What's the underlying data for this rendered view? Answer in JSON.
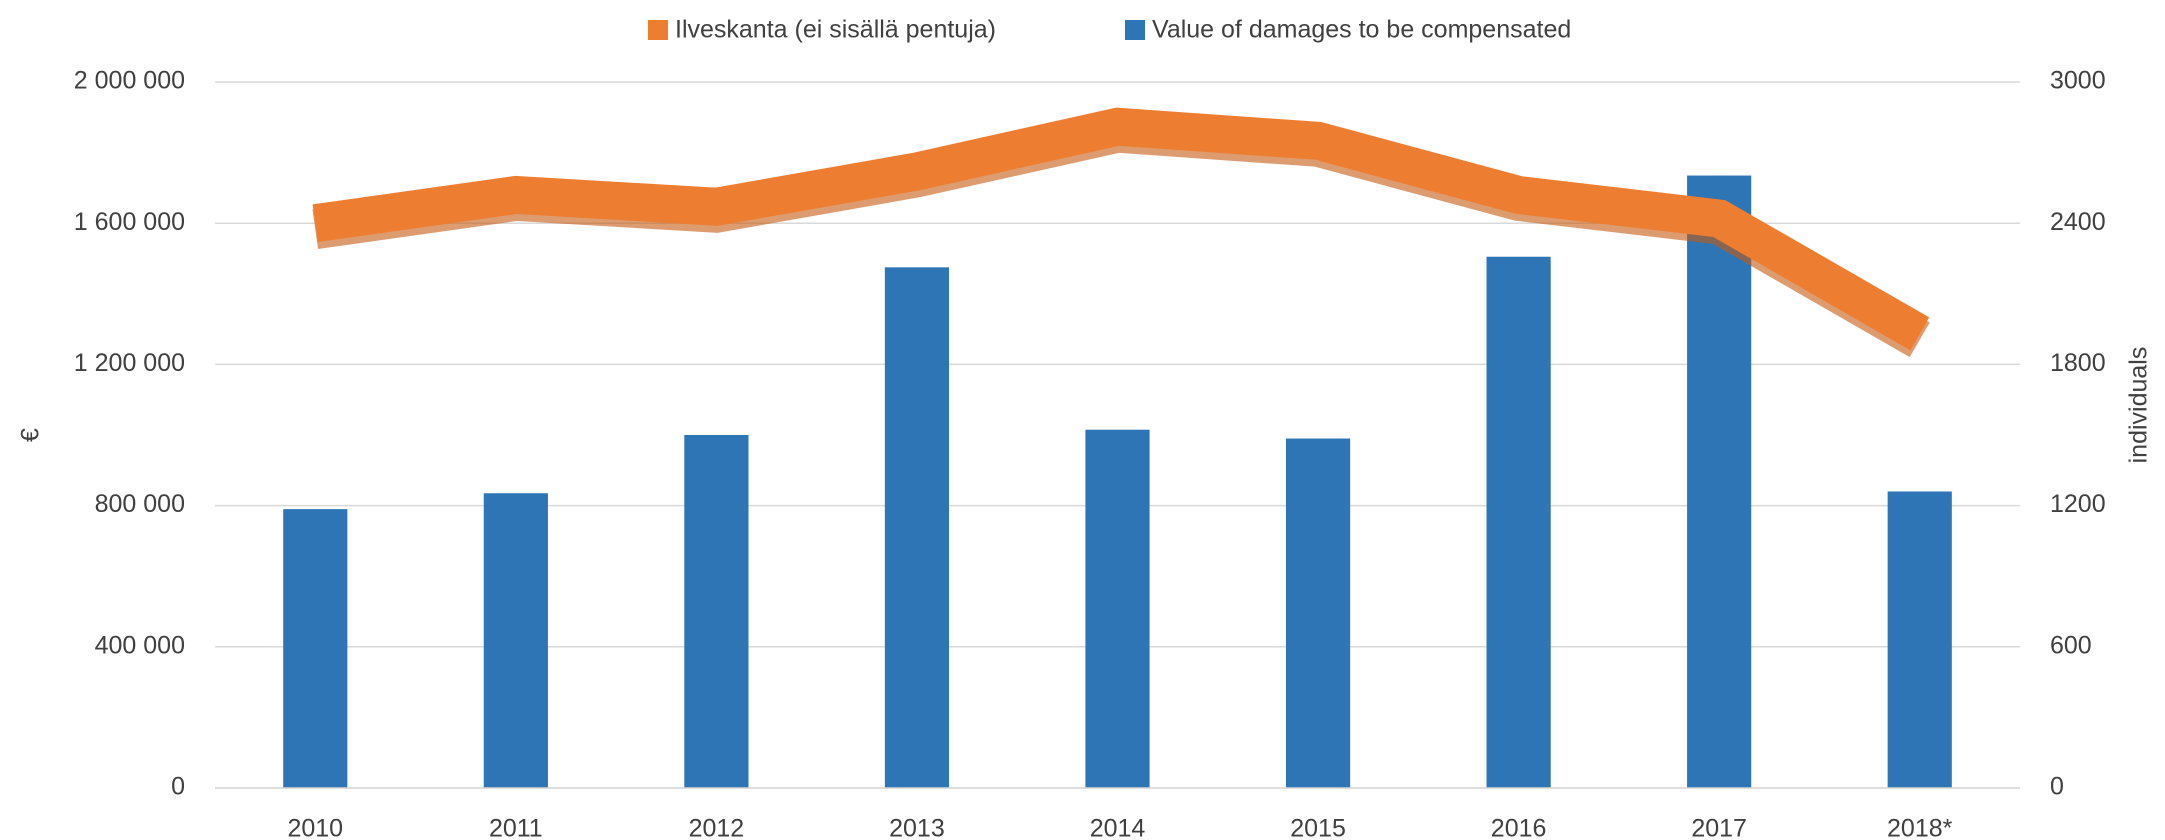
{
  "chart_data": {
    "type": "bar-line",
    "categories": [
      "2010",
      "2011",
      "2012",
      "2013",
      "2014",
      "2015",
      "2016",
      "2017",
      "2018*"
    ],
    "series": [
      {
        "name": "Value of damages to be compensated",
        "color": "#2e75b6",
        "type": "bar",
        "axis": "y",
        "values": [
          790000,
          835000,
          1000000,
          1475000,
          1015000,
          990000,
          1505000,
          1735000,
          840000
        ]
      },
      {
        "name": "Ilveskanta (ei sisällä pentuja)",
        "color": "#ed7d31",
        "type": "line",
        "axis": "y2",
        "values": [
          2400,
          2520,
          2470,
          2620,
          2810,
          2750,
          2520,
          2420,
          1930
        ]
      }
    ],
    "ylabel": "€",
    "y2label": "individuals",
    "ylim": [
      0,
      2000000
    ],
    "yticks": [
      0,
      {
        "value": 400000,
        "label": "400 000"
      },
      {
        "value": 800000,
        "label": "800 000"
      },
      {
        "value": 1200000,
        "label": "1 200 000"
      },
      {
        "value": 1600000,
        "label": "1 600 000"
      },
      {
        "value": 2000000,
        "label": "2 000 000"
      }
    ],
    "y2lim": [
      0,
      3000
    ],
    "y2ticks": [
      0,
      600,
      1200,
      1800,
      2400,
      3000
    ],
    "grid": true,
    "legend": "top"
  }
}
